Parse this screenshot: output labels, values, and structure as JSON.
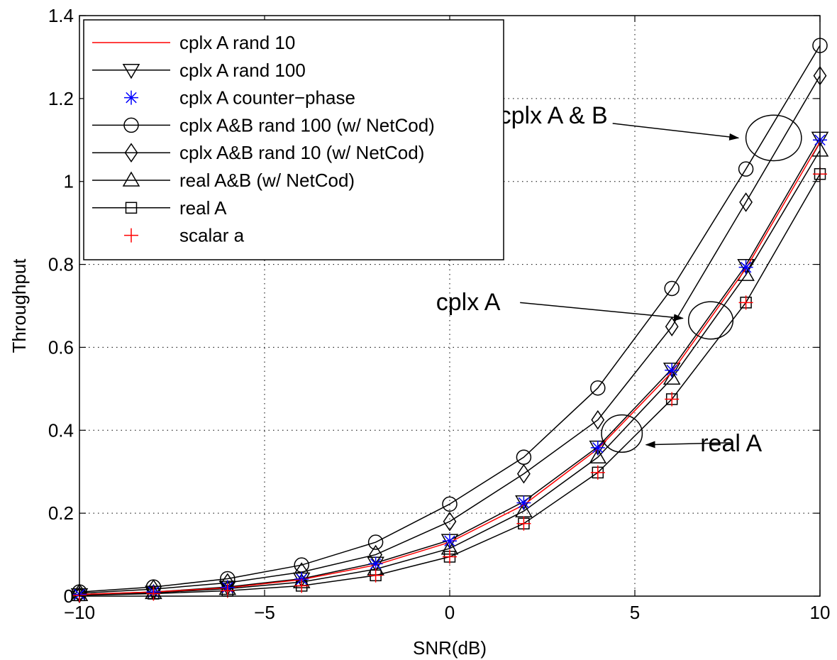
{
  "chart_data": {
    "type": "line",
    "title": "",
    "xlabel": "SNR(dB)",
    "ylabel": "Throughput",
    "xlim": [
      -10,
      10
    ],
    "ylim": [
      0,
      1.4
    ],
    "xticks": [
      -10,
      -5,
      0,
      5,
      10
    ],
    "yticks": [
      0,
      0.2,
      0.4,
      0.6,
      0.8,
      1,
      1.2,
      1.4
    ],
    "grid": true,
    "legend_position": "top-left",
    "x": [
      -10,
      -8,
      -6,
      -4,
      -2,
      0,
      2,
      4,
      6,
      8,
      10
    ],
    "series": [
      {
        "name": "cplx A rand 10",
        "marker": "line",
        "color": "#ff0000",
        "values": [
          0.004,
          0.01,
          0.02,
          0.04,
          0.075,
          0.13,
          0.22,
          0.355,
          0.54,
          0.79,
          1.095
        ]
      },
      {
        "name": "cplx A rand 100",
        "marker": "triangle-down",
        "color": "#000000",
        "values": [
          0.004,
          0.01,
          0.022,
          0.042,
          0.08,
          0.135,
          0.228,
          0.36,
          0.548,
          0.798,
          1.105
        ]
      },
      {
        "name": "cplx A counter−phase",
        "marker": "asterisk",
        "color": "#0000ff",
        "values": [
          0.004,
          0.01,
          0.021,
          0.041,
          0.078,
          0.133,
          0.225,
          0.358,
          0.545,
          0.793,
          1.1
        ]
      },
      {
        "name": "cplx A&B rand 100 (w/ NetCod)",
        "marker": "circle",
        "color": "#000000",
        "values": [
          0.01,
          0.022,
          0.042,
          0.075,
          0.13,
          0.222,
          0.335,
          0.502,
          0.742,
          1.03,
          1.328
        ]
      },
      {
        "name": "cplx A&B rand 10 (w/ NetCod)",
        "marker": "diamond",
        "color": "#000000",
        "values": [
          0.007,
          0.017,
          0.032,
          0.058,
          0.1,
          0.18,
          0.295,
          0.425,
          0.65,
          0.95,
          1.255
        ]
      },
      {
        "name": "real A&B (w/ NetCod)",
        "marker": "triangle-up",
        "color": "#000000",
        "values": [
          0.003,
          0.008,
          0.018,
          0.034,
          0.065,
          0.115,
          0.205,
          0.335,
          0.525,
          0.775,
          1.075
        ]
      },
      {
        "name": "real A",
        "marker": "square",
        "color": "#000000",
        "values": [
          0.002,
          0.006,
          0.013,
          0.025,
          0.05,
          0.095,
          0.175,
          0.298,
          0.475,
          0.708,
          1.018
        ]
      },
      {
        "name": "scalar a",
        "marker": "plus",
        "color": "#ff0000",
        "values": [
          0.002,
          0.006,
          0.013,
          0.025,
          0.05,
          0.095,
          0.175,
          0.298,
          0.475,
          0.708,
          1.018
        ]
      }
    ],
    "annotations": [
      {
        "text": "cplx A & B",
        "text_at": [
          2.8,
          1.16
        ],
        "arrow_from": [
          4.4,
          1.14
        ],
        "arrow_to": [
          7.8,
          1.105
        ],
        "ellipse_at": [
          8.75,
          1.105
        ],
        "ellipse_rx": 0.75,
        "ellipse_ry": 0.055
      },
      {
        "text": "cplx A",
        "text_at": [
          0.5,
          0.71
        ],
        "arrow_from": [
          1.9,
          0.708
        ],
        "arrow_to": [
          6.3,
          0.67
        ],
        "ellipse_at": [
          7.05,
          0.665
        ],
        "ellipse_rx": 0.6,
        "ellipse_ry": 0.045
      },
      {
        "text": "real A",
        "text_at": [
          7.6,
          0.37
        ],
        "arrow_from": [
          7.6,
          0.37
        ],
        "arrow_to": [
          5.3,
          0.365
        ],
        "ellipse_at": [
          4.65,
          0.392
        ],
        "ellipse_rx": 0.55,
        "ellipse_ry": 0.045
      }
    ]
  }
}
